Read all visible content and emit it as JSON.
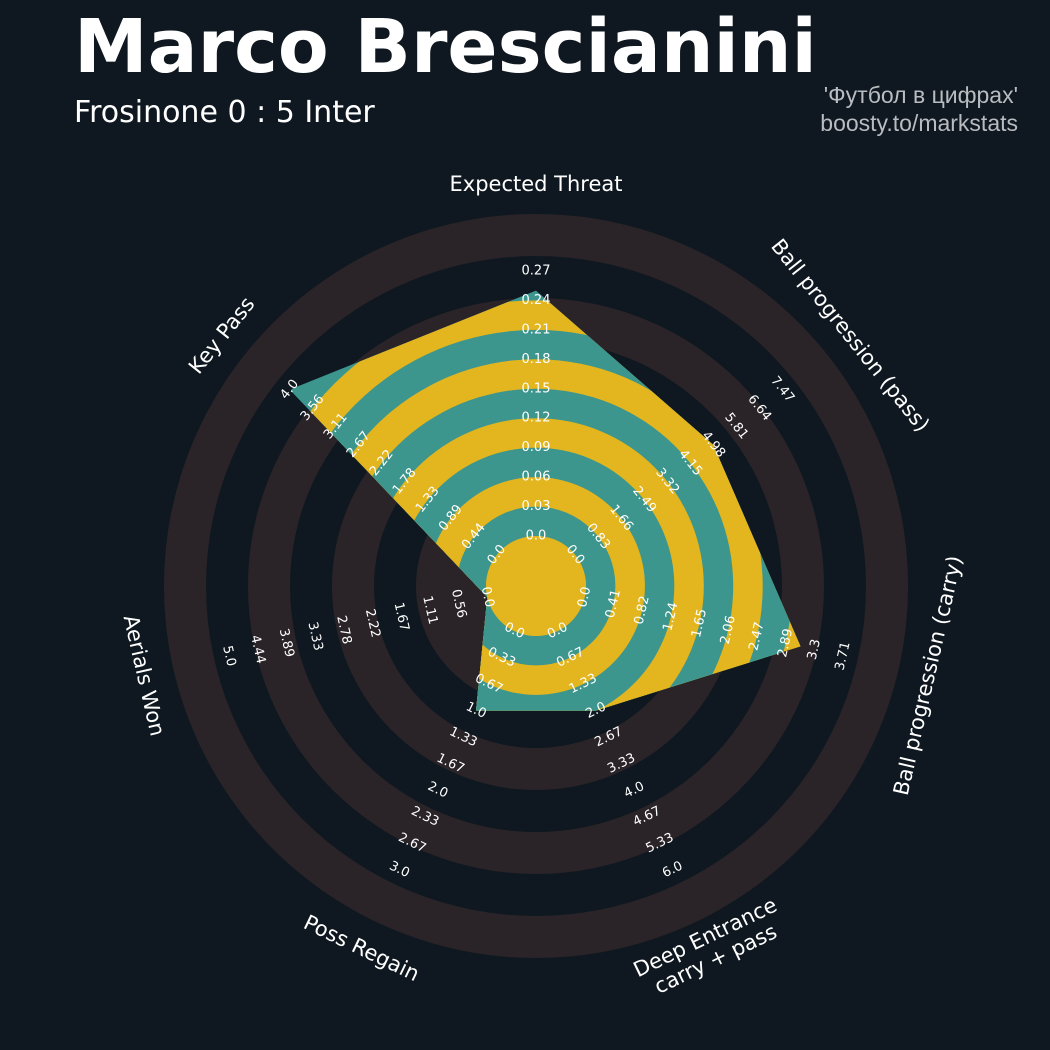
{
  "header": {
    "title": "Marco Brescianini",
    "subtitle": "Frosinone 0 : 5 Inter",
    "credit_line1": "'Футбол в цифрах'",
    "credit_line2": "boosty.to/markstats"
  },
  "colors": {
    "background": "#0f1820",
    "ring_light": "#2a2428",
    "ring_dark": "#0f1820",
    "value_teal": "#3d968e",
    "value_gold": "#e3b51e",
    "text": "#ffffff"
  },
  "chart_data": {
    "type": "radar",
    "title": "Marco Brescianini",
    "parameters": [
      {
        "label": [
          "Expected Threat"
        ],
        "value": 0.25,
        "min": 0.0,
        "max": 0.27,
        "ticks": [
          "0.0",
          "0.03",
          "0.06",
          "0.09",
          "0.12",
          "0.15",
          "0.18",
          "0.21",
          "0.24",
          "0.27"
        ]
      },
      {
        "label": [
          "Ball progression (pass)"
        ],
        "value": 4.98,
        "min": 0.0,
        "max": 7.47,
        "ticks": [
          "0.0",
          "0.83",
          "1.66",
          "2.49",
          "3.32",
          "4.15",
          "4.98",
          "5.81",
          "6.64",
          "7.47"
        ]
      },
      {
        "label": [
          "Ball progression (carry)"
        ],
        "value": 3.1,
        "min": 0.0,
        "max": 3.71,
        "ticks": [
          "0.0",
          "0.41",
          "0.82",
          "1.24",
          "1.65",
          "2.06",
          "2.47",
          "2.89",
          "3.3",
          "3.71"
        ]
      },
      {
        "label": [
          "Deep Entrance",
          "carry + pass"
        ],
        "value": 2.0,
        "min": 0.0,
        "max": 6.0,
        "ticks": [
          "0.0",
          "0.67",
          "1.33",
          "2.0",
          "2.67",
          "3.33",
          "4.0",
          "4.67",
          "5.33",
          "6.0"
        ]
      },
      {
        "label": [
          "Poss Regain"
        ],
        "value": 1.0,
        "min": 0.0,
        "max": 3.0,
        "ticks": [
          "0.0",
          "0.33",
          "0.67",
          "1.0",
          "1.33",
          "1.67",
          "2.0",
          "2.33",
          "2.67",
          "3.0"
        ]
      },
      {
        "label": [
          "Aerials Won"
        ],
        "value": 0.0,
        "min": 0.0,
        "max": 5.0,
        "ticks": [
          "0.0",
          "0.56",
          "1.11",
          "1.67",
          "2.22",
          "2.78",
          "3.33",
          "3.89",
          "4.44",
          "5.0"
        ]
      },
      {
        "label": [
          "Key Pass"
        ],
        "value": 4.0,
        "min": 0.0,
        "max": 4.0,
        "ticks": [
          "0.0",
          "0.44",
          "0.89",
          "1.33",
          "1.78",
          "2.22",
          "2.67",
          "3.11",
          "3.56",
          "4.0"
        ]
      }
    ]
  }
}
